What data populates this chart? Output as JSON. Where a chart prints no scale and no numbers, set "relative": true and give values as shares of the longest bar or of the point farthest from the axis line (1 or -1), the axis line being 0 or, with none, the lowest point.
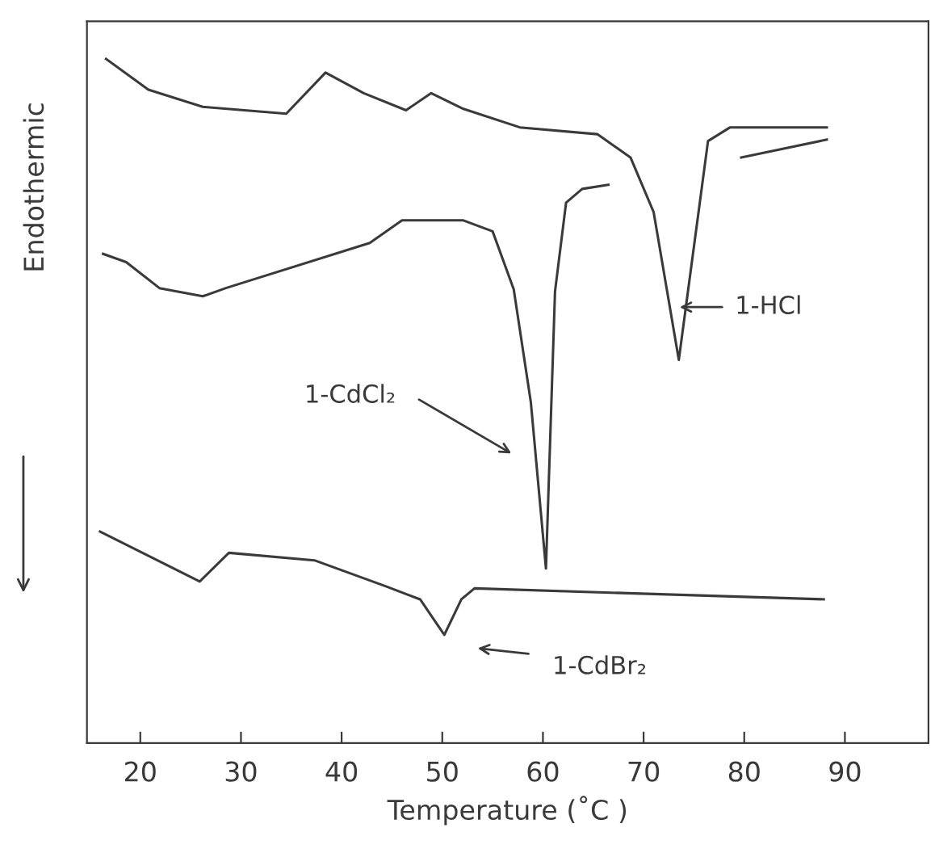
{
  "chart_data": {
    "type": "line",
    "relative": true,
    "xlabel": "Temperature (˚C )",
    "ylabel": "Endothermic",
    "xlim": [
      14.7,
      98.3
    ],
    "xticks": [
      20,
      30,
      40,
      50,
      60,
      70,
      80,
      90
    ],
    "grid": false,
    "marker": "none",
    "line_style": "solid",
    "series": [
      {
        "color": "#3a3a3a",
        "x": [
          16.6,
          20.8,
          26.2,
          34.5,
          38.4,
          42.2,
          46.4,
          48.9,
          52.1,
          57.7,
          65.4,
          68.7,
          71.0,
          73.5,
          76.4,
          78.6,
          88.2
        ],
        "values": [
          1.0,
          0.955,
          0.93,
          0.92,
          0.98,
          0.95,
          0.925,
          0.95,
          0.927,
          0.9,
          0.89,
          0.856,
          0.776,
          0.56,
          0.88,
          0.9,
          0.9
        ]
      },
      {
        "color": "#3a3a3a",
        "x": [
          79.7,
          88.2
        ],
        "values": [
          0.856,
          0.882
        ]
      },
      {
        "color": "#3a3a3a",
        "x": [
          16.3,
          18.6,
          21.9,
          26.2,
          28.5,
          42.8,
          46.0,
          52.1,
          55.0,
          57.1,
          58.8,
          60.3,
          61.2,
          62.3,
          63.9,
          66.5
        ],
        "values": [
          0.715,
          0.703,
          0.665,
          0.653,
          0.665,
          0.731,
          0.764,
          0.764,
          0.748,
          0.663,
          0.498,
          0.255,
          0.66,
          0.79,
          0.81,
          0.816
        ]
      },
      {
        "color": "#3a3a3a",
        "x": [
          16.0,
          25.9,
          28.8,
          37.3,
          44.4,
          47.8,
          50.2,
          51.9,
          53.2,
          87.9
        ],
        "values": [
          0.309,
          0.236,
          0.278,
          0.267,
          0.229,
          0.21,
          0.158,
          0.21,
          0.226,
          0.21
        ]
      }
    ],
    "annotations": [
      "1-HCl",
      "1-CdCl₂",
      "1-CdBr₂"
    ]
  }
}
